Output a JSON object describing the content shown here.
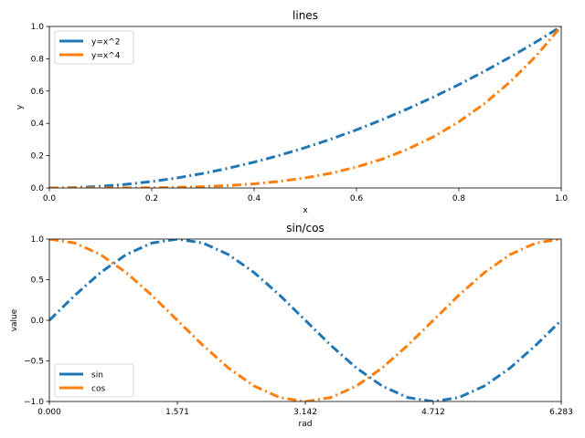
{
  "chart_data": [
    {
      "type": "line",
      "title": "lines",
      "xlabel": "x",
      "ylabel": "y",
      "xlim": [
        0,
        1
      ],
      "ylim": [
        0,
        1
      ],
      "xticks": [
        0,
        0.2,
        0.4,
        0.6,
        0.8,
        1.0
      ],
      "xtick_labels": [
        "0.0",
        "0.2",
        "0.4",
        "0.6",
        "0.8",
        "1.0"
      ],
      "yticks": [
        0,
        0.2,
        0.4,
        0.6,
        0.8,
        1.0
      ],
      "ytick_labels": [
        "0.0",
        "0.2",
        "0.4",
        "0.6",
        "0.8",
        "1.0"
      ],
      "grid": false,
      "legend_position": "upper-left",
      "x": [
        0,
        0.05,
        0.1,
        0.15,
        0.2,
        0.25,
        0.3,
        0.35,
        0.4,
        0.45,
        0.5,
        0.55,
        0.6,
        0.65,
        0.7,
        0.75,
        0.8,
        0.85,
        0.9,
        0.95,
        1.0
      ],
      "series": [
        {
          "name": "y=x^2",
          "color": "#1f77b4",
          "linestyle": "dashdot",
          "values": [
            0,
            0.0025,
            0.01,
            0.0225,
            0.04,
            0.0625,
            0.09,
            0.1225,
            0.16,
            0.2025,
            0.25,
            0.3025,
            0.36,
            0.4225,
            0.49,
            0.5625,
            0.64,
            0.7225,
            0.81,
            0.9025,
            1.0
          ]
        },
        {
          "name": "y=x^4",
          "color": "#ff7f0e",
          "linestyle": "dashdot",
          "values": [
            0,
            6.3e-06,
            0.0001,
            0.0005,
            0.0016,
            0.0039,
            0.0081,
            0.015,
            0.0256,
            0.041,
            0.0625,
            0.0915,
            0.1296,
            0.1785,
            0.2401,
            0.3164,
            0.4096,
            0.522,
            0.6561,
            0.8145,
            1.0
          ]
        }
      ]
    },
    {
      "type": "line",
      "title": "sin/cos",
      "xlabel": "rad",
      "ylabel": "value",
      "xlim": [
        0,
        6.283
      ],
      "ylim": [
        -1,
        1
      ],
      "xticks": [
        0,
        1.571,
        3.142,
        4.712,
        6.283
      ],
      "xtick_labels": [
        "0.000",
        "1.571",
        "3.142",
        "4.712",
        "6.283"
      ],
      "yticks": [
        -1,
        -0.5,
        0,
        0.5,
        1
      ],
      "ytick_labels": [
        "−1.0",
        "−0.5",
        "0.0",
        "0.5",
        "1.0"
      ],
      "grid": false,
      "legend_position": "lower-left",
      "x": [
        0,
        0.3142,
        0.6283,
        0.9425,
        1.2566,
        1.5708,
        1.885,
        2.1991,
        2.5133,
        2.8274,
        3.1416,
        3.4558,
        3.7699,
        4.0841,
        4.3982,
        4.7124,
        5.0265,
        5.3407,
        5.6549,
        5.969,
        6.2832
      ],
      "series": [
        {
          "name": "sin",
          "color": "#1f77b4",
          "linestyle": "dashdot",
          "values": [
            0,
            0.309,
            0.5878,
            0.809,
            0.9511,
            1.0,
            0.9511,
            0.809,
            0.5878,
            0.309,
            0,
            -0.309,
            -0.5878,
            -0.809,
            -0.9511,
            -1.0,
            -0.9511,
            -0.809,
            -0.5878,
            -0.309,
            0
          ]
        },
        {
          "name": "cos",
          "color": "#ff7f0e",
          "linestyle": "dashdot",
          "values": [
            1.0,
            0.9511,
            0.809,
            0.5878,
            0.309,
            0,
            -0.309,
            -0.5878,
            -0.809,
            -0.9511,
            -1.0,
            -0.9511,
            -0.809,
            -0.5878,
            -0.309,
            0,
            0.309,
            0.5878,
            0.809,
            0.9511,
            1.0
          ]
        }
      ]
    }
  ]
}
